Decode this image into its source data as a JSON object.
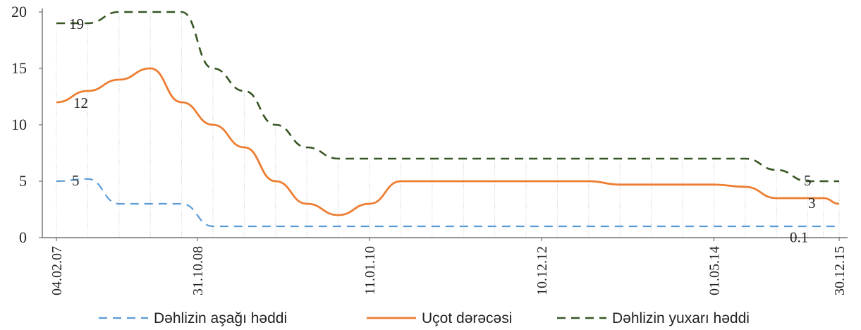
{
  "chart_data": {
    "type": "line",
    "title": "",
    "xlabel": "",
    "ylabel": "",
    "ylim": [
      0,
      20
    ],
    "yticks": [
      0,
      5,
      10,
      15,
      20
    ],
    "x_tick_labels": [
      "04.02.07",
      "31.10.08",
      "11.01.10",
      "10.12.12",
      "01.05.14",
      "30.12.15"
    ],
    "grid": "vertical dotted drop lines at each observation",
    "legend_position": "bottom",
    "colors": {
      "lower": "#5b9bd5",
      "rate": "#ed7d31",
      "upper": "#375623"
    },
    "series": [
      {
        "name": "Dəhlizin aşağı həddi",
        "style": "dashed",
        "values": [
          5,
          5.2,
          3,
          3,
          3,
          1,
          1,
          1,
          1,
          1,
          1,
          1,
          1,
          1,
          1,
          1,
          1,
          1,
          1,
          1,
          1,
          1,
          1,
          1,
          1,
          1,
          1,
          1,
          1,
          1,
          1,
          0.5,
          0.1,
          0.1,
          0.1,
          0.1,
          0.1,
          0.1,
          0.1,
          0.1,
          0.1,
          0.1,
          0.1,
          0.1,
          0.1,
          0.1,
          0.1,
          0.1,
          0.1,
          0.1,
          0.1,
          0.1
        ]
      },
      {
        "name": "Uçot dərəcəsi",
        "style": "solid",
        "values": [
          12,
          13,
          14,
          15,
          12,
          10,
          8,
          5,
          3,
          2,
          3,
          5,
          5,
          5,
          5,
          5,
          5,
          5,
          4.7,
          4.7,
          4.7,
          4.7,
          4.5,
          3.5,
          3.5,
          3.5,
          3,
          3,
          3,
          3,
          3,
          3,
          3,
          3,
          3,
          3,
          3,
          3,
          3,
          3,
          3,
          3,
          3,
          3,
          3,
          3,
          3,
          3,
          3,
          3,
          3,
          3
        ]
      },
      {
        "name": "Dəhlizin yuxarı həddi",
        "style": "dashed",
        "values": [
          19,
          19,
          20,
          20,
          20,
          15,
          13,
          10,
          8,
          7,
          7,
          7,
          7,
          7,
          7,
          7,
          7,
          7,
          7,
          7,
          7,
          7,
          7,
          6,
          5,
          5,
          5,
          5,
          5,
          5,
          5,
          5,
          5,
          5,
          5,
          5,
          5,
          5,
          5,
          5,
          5,
          5,
          5,
          5,
          5,
          5,
          5,
          5,
          5,
          5,
          5,
          5
        ]
      }
    ],
    "data_labels": [
      "19",
      "12",
      "5",
      "5",
      "3",
      "0.1"
    ]
  }
}
